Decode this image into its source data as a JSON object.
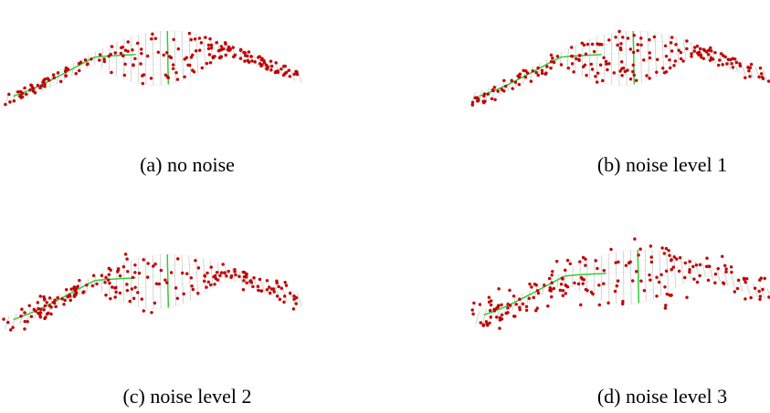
{
  "panels": [
    {
      "caption": "(a) no noise"
    },
    {
      "caption": "(b) noise level 1"
    },
    {
      "caption": "(c) noise level 2"
    },
    {
      "caption": "(d) noise level 3"
    }
  ]
}
